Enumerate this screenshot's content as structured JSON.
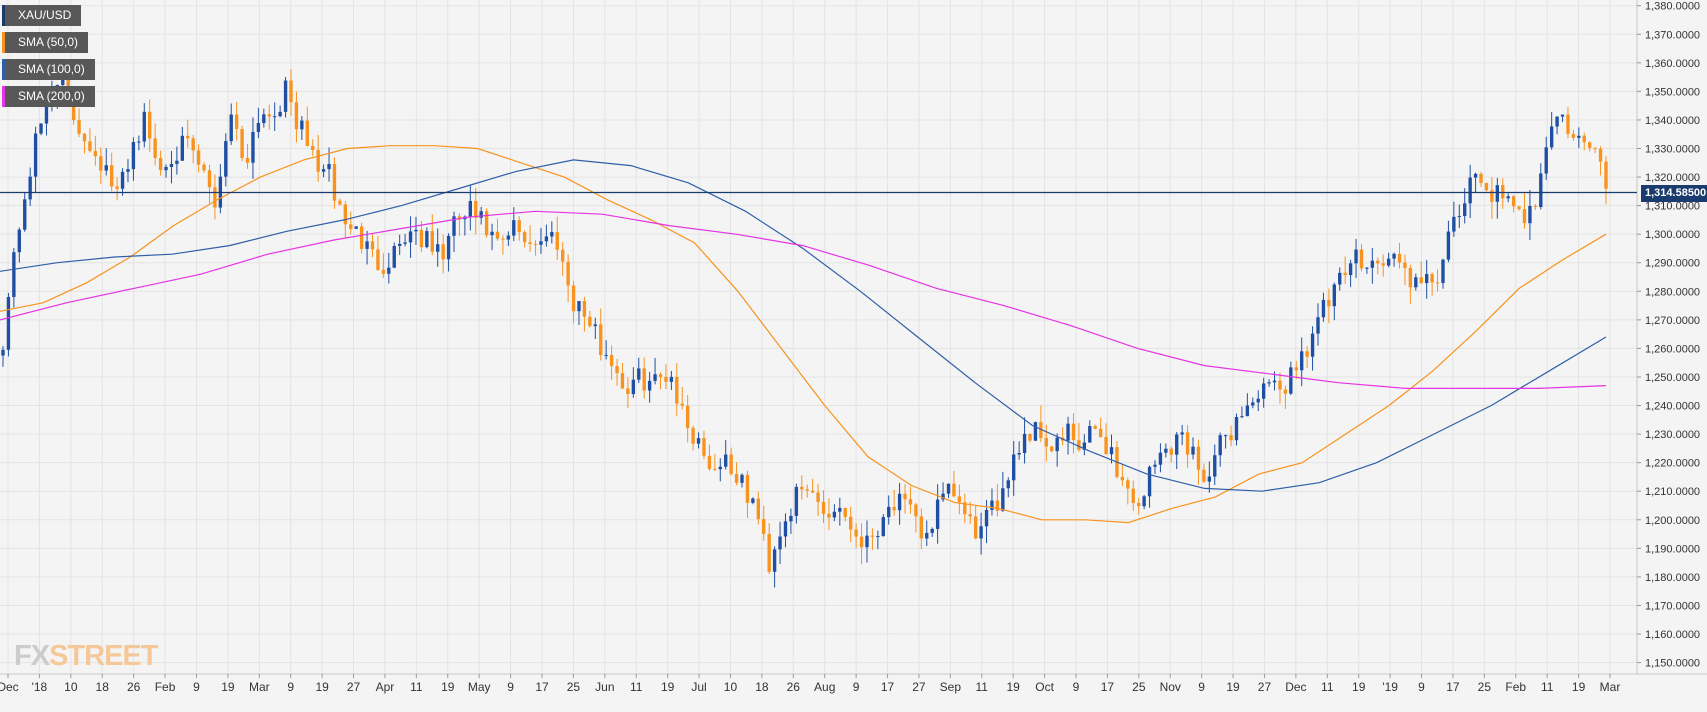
{
  "legend": [
    {
      "label": "XAU/USD",
      "color": "#1a3b6e"
    },
    {
      "label": "SMA (50,0)",
      "color": "#f7931e"
    },
    {
      "label": "SMA (100,0)",
      "color": "#2e5fa8"
    },
    {
      "label": "SMA (200,0)",
      "color": "#e633e6"
    }
  ],
  "watermark": {
    "prefix": "FX",
    "suffix": "STREET"
  },
  "current_price": "1,314.58500",
  "colors": {
    "bull": "#1f4fa3",
    "bear": "#f7931e",
    "sma50": "#f7931e",
    "sma100": "#2e5fa8",
    "sma200": "#e633e6",
    "priceLine": "#1a3b6e",
    "grid": "#e3e3e3",
    "background": "#f4f4f4"
  },
  "chart_data": {
    "type": "candlestick",
    "title": "",
    "xlabel": "",
    "ylabel": "",
    "ylim": [
      1146,
      1382
    ],
    "y_ticks": [
      "1,150.0000",
      "1,160.0000",
      "1,170.0000",
      "1,180.0000",
      "1,190.0000",
      "1,200.0000",
      "1,210.0000",
      "1,220.0000",
      "1,230.0000",
      "1,240.0000",
      "1,250.0000",
      "1,260.0000",
      "1,270.0000",
      "1,280.0000",
      "1,290.0000",
      "1,300.0000",
      "1,310.0000",
      "1,320.0000",
      "1,330.0000",
      "1,340.0000",
      "1,350.0000",
      "1,360.0000",
      "1,370.0000",
      "1,380.0000"
    ],
    "x_ticks": [
      "Dec",
      "'18",
      "10",
      "18",
      "26",
      "Feb",
      "9",
      "19",
      "Mar",
      "9",
      "19",
      "27",
      "Apr",
      "11",
      "19",
      "May",
      "9",
      "17",
      "25",
      "Jun",
      "11",
      "19",
      "Jul",
      "10",
      "18",
      "26",
      "Aug",
      "9",
      "17",
      "27",
      "Sep",
      "11",
      "19",
      "Oct",
      "9",
      "17",
      "25",
      "Nov",
      "9",
      "19",
      "27",
      "Dec",
      "11",
      "19",
      "'19",
      "9",
      "17",
      "25",
      "Feb",
      "11",
      "19",
      "Mar"
    ],
    "grid": true,
    "legend_position": "top-left",
    "price_line": 1314.585,
    "price_anchors": [
      1264,
      1300,
      1325,
      1345,
      1358,
      1340,
      1333,
      1325,
      1312,
      1330,
      1340,
      1322,
      1330,
      1330,
      1322,
      1310,
      1345,
      1325,
      1342,
      1343,
      1350,
      1336,
      1326,
      1320,
      1305,
      1300,
      1292,
      1290,
      1298,
      1302,
      1296,
      1293,
      1305,
      1308,
      1302,
      1294,
      1302,
      1298,
      1298,
      1300,
      1279,
      1272,
      1262,
      1255,
      1245,
      1250,
      1248,
      1253,
      1235,
      1228,
      1218,
      1222,
      1212,
      1205,
      1185,
      1200,
      1208,
      1210,
      1202,
      1205,
      1196,
      1192,
      1202,
      1207,
      1201,
      1194,
      1205,
      1210,
      1198,
      1196,
      1205,
      1220,
      1230,
      1232,
      1225,
      1230,
      1224,
      1232,
      1225,
      1212,
      1205,
      1218,
      1225,
      1230,
      1222,
      1215,
      1228,
      1235,
      1242,
      1245,
      1245,
      1253,
      1262,
      1273,
      1280,
      1290,
      1293,
      1289,
      1292,
      1286,
      1280,
      1285,
      1298,
      1312,
      1320,
      1315,
      1310,
      1305,
      1313,
      1338,
      1340,
      1332,
      1330,
      1318
    ],
    "sma50": [
      1273,
      1276,
      1283,
      1292,
      1303,
      1312,
      1320,
      1326,
      1330,
      1331,
      1331,
      1330,
      1325,
      1320,
      1312,
      1305,
      1297,
      1280,
      1260,
      1240,
      1222,
      1212,
      1206,
      1204,
      1200,
      1200,
      1199,
      1204,
      1208,
      1216,
      1220,
      1230,
      1240,
      1252,
      1266,
      1281,
      1291,
      1300
    ],
    "sma100": [
      1287,
      1290,
      1292,
      1293,
      1296,
      1301,
      1305,
      1310,
      1316,
      1322,
      1326,
      1324,
      1318,
      1308,
      1295,
      1280,
      1264,
      1248,
      1233,
      1224,
      1216,
      1211,
      1210,
      1213,
      1220,
      1230,
      1240,
      1252,
      1264
    ],
    "sma200": [
      1270,
      1276,
      1281,
      1286,
      1293,
      1298,
      1302,
      1306,
      1308,
      1307,
      1303,
      1300,
      1296,
      1289,
      1281,
      1275,
      1268,
      1260,
      1254,
      1251,
      1248,
      1246,
      1246,
      1246,
      1247
    ]
  }
}
